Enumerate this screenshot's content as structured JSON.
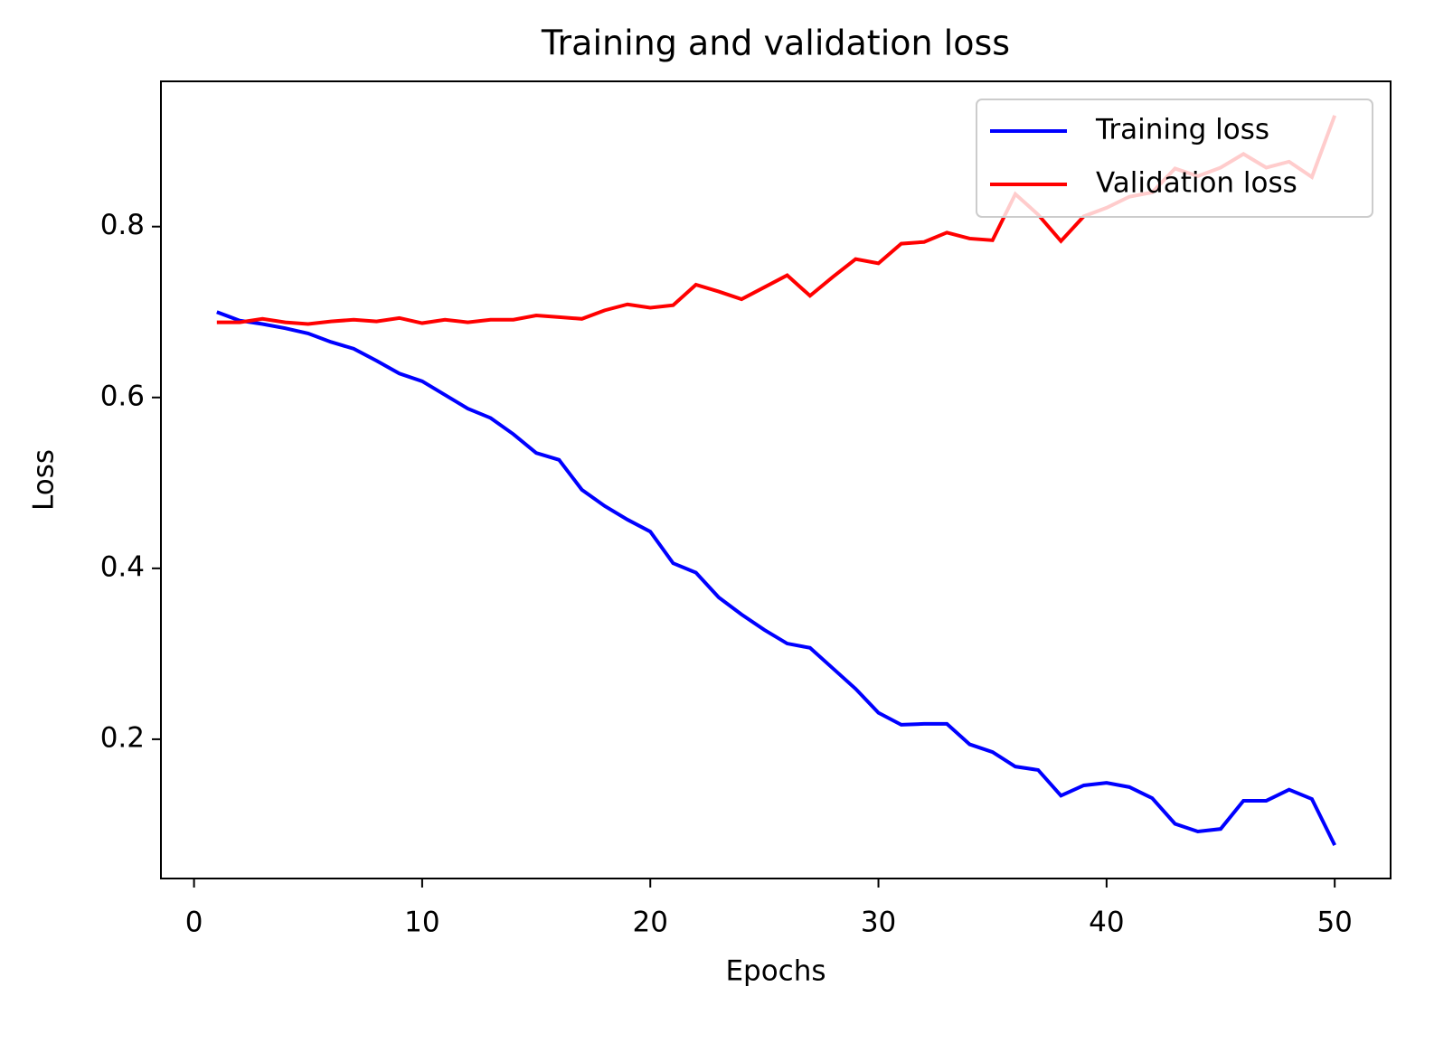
{
  "chart_data": {
    "type": "line",
    "title": "Training and validation loss",
    "x_label": "Epochs",
    "y_label": "Loss",
    "x": [
      1,
      2,
      3,
      4,
      5,
      6,
      7,
      8,
      9,
      10,
      11,
      12,
      13,
      14,
      15,
      16,
      17,
      18,
      19,
      20,
      21,
      22,
      23,
      24,
      25,
      26,
      27,
      28,
      29,
      30,
      31,
      32,
      33,
      34,
      35,
      36,
      37,
      38,
      39,
      40,
      41,
      42,
      43,
      44,
      45,
      46,
      47,
      48,
      49,
      50
    ],
    "series": [
      {
        "name": "Training loss",
        "color": "#0000ff",
        "values": [
          0.7,
          0.69,
          0.686,
          0.681,
          0.675,
          0.665,
          0.657,
          0.643,
          0.628,
          0.619,
          0.603,
          0.587,
          0.576,
          0.557,
          0.535,
          0.527,
          0.492,
          0.473,
          0.457,
          0.443,
          0.406,
          0.395,
          0.366,
          0.346,
          0.328,
          0.312,
          0.307,
          0.283,
          0.259,
          0.231,
          0.217,
          0.218,
          0.218,
          0.194,
          0.185,
          0.168,
          0.164,
          0.134,
          0.146,
          0.149,
          0.144,
          0.131,
          0.101,
          0.092,
          0.095,
          0.128,
          0.128,
          0.141,
          0.13,
          0.076
        ]
      },
      {
        "name": "Validation loss",
        "color": "#ff0000",
        "values": [
          0.688,
          0.688,
          0.692,
          0.688,
          0.686,
          0.689,
          0.691,
          0.689,
          0.693,
          0.687,
          0.691,
          0.688,
          0.691,
          0.691,
          0.696,
          0.694,
          0.692,
          0.702,
          0.709,
          0.705,
          0.708,
          0.732,
          0.724,
          0.715,
          0.729,
          0.743,
          0.719,
          0.741,
          0.762,
          0.757,
          0.78,
          0.782,
          0.793,
          0.786,
          0.784,
          0.838,
          0.814,
          0.783,
          0.812,
          0.822,
          0.835,
          0.84,
          0.868,
          0.859,
          0.869,
          0.885,
          0.869,
          0.876,
          0.858,
          0.93
        ]
      }
    ],
    "xlim": [
      -1.45,
      52.45
    ],
    "ylim": [
      0.037,
      0.97
    ],
    "xticks": [
      0,
      10,
      20,
      30,
      40,
      50
    ],
    "yticks": [
      0.2,
      0.4,
      0.6,
      0.8
    ],
    "legend": "upper right",
    "grid": false
  }
}
